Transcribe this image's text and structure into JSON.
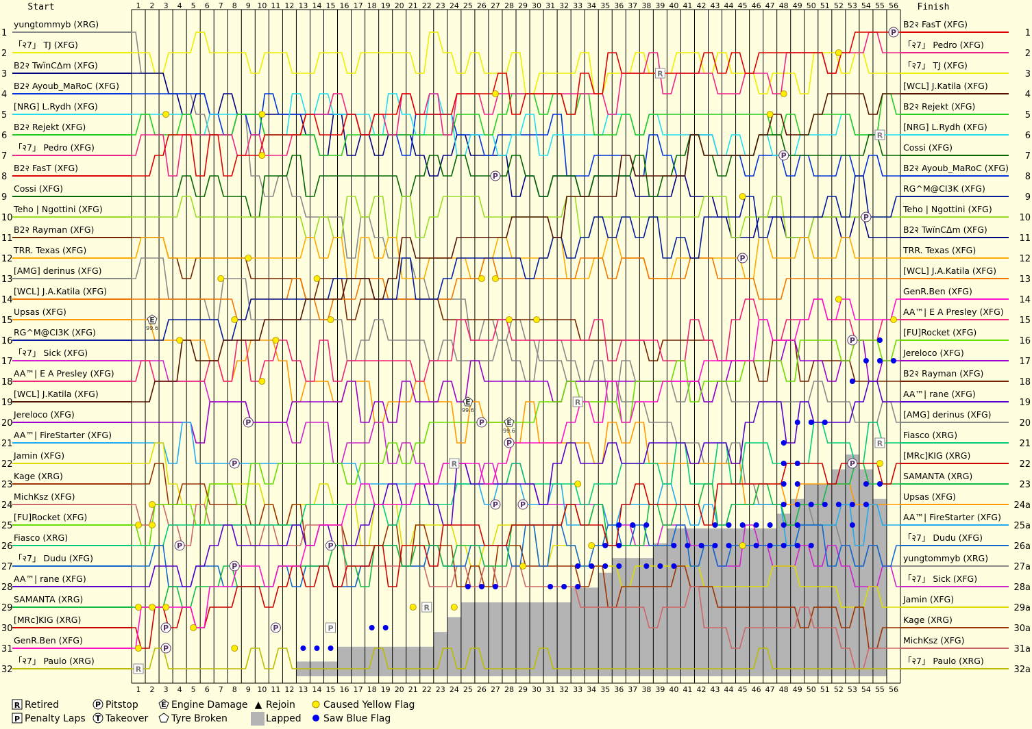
{
  "header": {
    "start_label": "Start",
    "finish_label": "Finish"
  },
  "legend": [
    {
      "symbol": "R",
      "label": "Retired",
      "kind": "box"
    },
    {
      "symbol": "P",
      "label": "Pitstop",
      "kind": "circle"
    },
    {
      "symbol": "E",
      "label": "Engine Damage",
      "kind": "pentagon"
    },
    {
      "symbol": "▲",
      "label": "Rejoin",
      "kind": "glyph"
    },
    {
      "symbol": "",
      "label": "Caused Yellow Flag",
      "kind": "yellowdot"
    },
    {
      "symbol": "P",
      "label": "Penalty Laps",
      "kind": "box"
    },
    {
      "symbol": "T",
      "label": "Takeover",
      "kind": "circle"
    },
    {
      "symbol": "",
      "label": "Tyre Broken",
      "kind": "pentagon"
    },
    {
      "symbol": "",
      "label": "Lapped",
      "kind": "graybox"
    },
    {
      "symbol": "",
      "label": "Saw Blue Flag",
      "kind": "bluedot"
    }
  ],
  "colors": {
    "background": "#ffffe0",
    "grid": "#000000",
    "lapped": "#b4b4b4",
    "yellow_flag": "#ffee00",
    "blue_flag": "#0000ee"
  },
  "chart_data": {
    "type": "line",
    "title": "",
    "xlabel": "",
    "ylabel": "",
    "laps": [
      1,
      2,
      3,
      4,
      5,
      6,
      7,
      8,
      9,
      10,
      11,
      12,
      13,
      14,
      15,
      16,
      17,
      18,
      19,
      20,
      21,
      22,
      23,
      24,
      25,
      26,
      27,
      28,
      29,
      30,
      31,
      32,
      33,
      34,
      35,
      36,
      37,
      38,
      39,
      40,
      41,
      42,
      43,
      44,
      45,
      46,
      47,
      48,
      49,
      50,
      51,
      52,
      53,
      54,
      55,
      56
    ],
    "positions": [
      1,
      2,
      3,
      4,
      5,
      6,
      7,
      8,
      9,
      10,
      11,
      12,
      13,
      14,
      15,
      16,
      17,
      18,
      19,
      20,
      21,
      22,
      23,
      24,
      25,
      26,
      27,
      28,
      29,
      30,
      31,
      32
    ],
    "start_grid": [
      {
        "pos": 1,
        "name": "yungtommyb (XRG)",
        "color": "#888888"
      },
      {
        "pos": 2,
        "name": "「२7」 TJ (XFG)",
        "color": "#eeee00"
      },
      {
        "pos": 3,
        "name": "B2२ TwïnCΔm (XFG)",
        "color": "#000080"
      },
      {
        "pos": 4,
        "name": "B2२ Ayoub_MaRoC (XFG)",
        "color": "#0033dd"
      },
      {
        "pos": 5,
        "name": "[NRG] L.Rydh (XFG)",
        "color": "#22ddee"
      },
      {
        "pos": 6,
        "name": "B2२ Rejekt (XFG)",
        "color": "#22cc22"
      },
      {
        "pos": 7,
        "name": "「२7」 Pedro (XFG)",
        "color": "#ee2288"
      },
      {
        "pos": 8,
        "name": "B2२ FasT (XFG)",
        "color": "#dd0000"
      },
      {
        "pos": 9,
        "name": "Cossi (XFG)",
        "color": "#006600"
      },
      {
        "pos": 10,
        "name": "Teho | Ngottini (XFG)",
        "color": "#99dd22"
      },
      {
        "pos": 11,
        "name": "B2२ Rayman (XFG)",
        "color": "#772200"
      },
      {
        "pos": 12,
        "name": "TRR. Texas (XFG)",
        "color": "#ffaa00"
      },
      {
        "pos": 13,
        "name": "[AMG] derinus (XFG)",
        "color": "#888888"
      },
      {
        "pos": 14,
        "name": "[WCL] J.A.Katila (XFG)",
        "color": "#ee7700"
      },
      {
        "pos": 15,
        "name": "Upsas (XFG)",
        "color": "#ff9900"
      },
      {
        "pos": 16,
        "name": "RG^M@CI3K (XFG)",
        "color": "#001a99"
      },
      {
        "pos": 17,
        "name": "「२7」 Sick (XFG)",
        "color": "#cc22cc"
      },
      {
        "pos": 18,
        "name": "AA™| E A Presley (XFG)",
        "color": "#ee2277"
      },
      {
        "pos": 19,
        "name": "[WCL] J.Katila (XFG)",
        "color": "#551100"
      },
      {
        "pos": 20,
        "name": "Jereloco (XFG)",
        "color": "#9900cc"
      },
      {
        "pos": 21,
        "name": "AA™| FireStarter (XFG)",
        "color": "#22aaee"
      },
      {
        "pos": 22,
        "name": "Jamin (XFG)",
        "color": "#dddd00"
      },
      {
        "pos": 23,
        "name": "Kage (XRG)",
        "color": "#993300"
      },
      {
        "pos": 24,
        "name": "MichKsz (XFG)",
        "color": "#cc6666"
      },
      {
        "pos": 25,
        "name": "[FU]Rocket (XFG)",
        "color": "#66dd00"
      },
      {
        "pos": 26,
        "name": "Fiasco (XRG)",
        "color": "#00cc77"
      },
      {
        "pos": 27,
        "name": "「२7」 Dudu (XFG)",
        "color": "#1166cc"
      },
      {
        "pos": 28,
        "name": "AA™| rane (XFG)",
        "color": "#5500cc"
      },
      {
        "pos": 29,
        "name": "SAMANTA (XRG)",
        "color": "#11bb44"
      },
      {
        "pos": 30,
        "name": "[MRc]KIG (XRG)",
        "color": "#cc0000"
      },
      {
        "pos": 31,
        "name": "GenR.Ben (XFG)",
        "color": "#ff11cc"
      },
      {
        "pos": 32,
        "name": "「२7」 Paulo (XRG)",
        "color": "#bbbb00"
      }
    ],
    "finish_order": [
      {
        "pos": "1",
        "name": "B2२ FasT (XFG)"
      },
      {
        "pos": "2",
        "name": "「२7」 Pedro (XFG)"
      },
      {
        "pos": "3",
        "name": "「२7」 TJ (XFG)"
      },
      {
        "pos": "4",
        "name": "[WCL] J.Katila (XFG)"
      },
      {
        "pos": "5",
        "name": "B2२ Rejekt (XFG)"
      },
      {
        "pos": "6",
        "name": "[NRG] L.Rydh (XFG)"
      },
      {
        "pos": "7",
        "name": "Cossi (XFG)"
      },
      {
        "pos": "8",
        "name": "B2२ Ayoub_MaRoC (XFG)"
      },
      {
        "pos": "9",
        "name": "RG^M@CI3K (XFG)"
      },
      {
        "pos": "10",
        "name": "Teho | Ngottini (XFG)"
      },
      {
        "pos": "11",
        "name": "B2२ TwïnCΔm (XFG)"
      },
      {
        "pos": "12",
        "name": "TRR. Texas (XFG)"
      },
      {
        "pos": "13",
        "name": "[WCL] J.A.Katila (XFG)"
      },
      {
        "pos": "14",
        "name": "GenR.Ben (XFG)"
      },
      {
        "pos": "15",
        "name": "AA™| E A Presley (XFG)"
      },
      {
        "pos": "16",
        "name": "[FU]Rocket (XFG)"
      },
      {
        "pos": "17",
        "name": "Jereloco (XFG)"
      },
      {
        "pos": "18",
        "name": "B2२ Rayman (XFG)"
      },
      {
        "pos": "19",
        "name": "AA™| rane (XFG)"
      },
      {
        "pos": "20",
        "name": "[AMG] derinus (XFG)"
      },
      {
        "pos": "21",
        "name": "Fiasco (XRG)"
      },
      {
        "pos": "22",
        "name": "[MRc]KIG (XRG)"
      },
      {
        "pos": "23",
        "name": "SAMANTA (XRG)"
      },
      {
        "pos": "24a",
        "name": "Upsas (XFG)"
      },
      {
        "pos": "25a",
        "name": "AA™| FireStarter (XFG)"
      },
      {
        "pos": "26a",
        "name": "「२7」 Dudu (XFG)"
      },
      {
        "pos": "27a",
        "name": "yungtommyb (XRG)"
      },
      {
        "pos": "28a",
        "name": "「२7」 Sick (XFG)"
      },
      {
        "pos": "29a",
        "name": "Jamin (XFG)"
      },
      {
        "pos": "30a",
        "name": "Kage (XRG)"
      },
      {
        "pos": "31a",
        "name": "MichKsz (XFG)"
      },
      {
        "pos": "32a",
        "name": "「२7」 Paulo (XRG)"
      }
    ],
    "finish_positions": {
      "B2२ FasT (XFG)": 1,
      "「२7」 Pedro (XFG)": 2,
      "「२7」 TJ (XFG)": 3,
      "[WCL] J.Katila (XFG)": 4,
      "B2२ Rejekt (XFG)": 5,
      "[NRG] L.Rydh (XFG)": 6,
      "Cossi (XFG)": 7,
      "B2२ Ayoub_MaRoC (XFG)": 8,
      "RG^M@CI3K (XFG)": 9,
      "Teho | Ngottini (XFG)": 10,
      "B2२ TwïnCΔm (XFG)": 11,
      "TRR. Texas (XFG)": 12,
      "[WCL] J.A.Katila (XFG)": 13,
      "GenR.Ben (XFG)": 14,
      "AA™| E A Presley (XFG)": 15,
      "[FU]Rocket (XFG)": 16,
      "Jereloco (XFG)": 17,
      "B2२ Rayman (XFG)": 18,
      "AA™| rane (XFG)": 19,
      "[AMG] derinus (XFG)": 20,
      "Fiasco (XRG)": 21,
      "[MRc]KIG (XRG)": 22,
      "SAMANTA (XRG)": 23,
      "Upsas (XFG)": 24,
      "AA™| FireStarter (XFG)": 25,
      "「२7」 Dudu (XFG)": 26,
      "yungtommyb (XRG)": 27,
      "「२7」 Sick (XFG)": 28,
      "Jamin (XFG)": 29,
      "Kage (XRG)": 30,
      "MichKsz (XFG)": 31,
      "「२7」 Paulo (XRG)": 32
    },
    "lapped_count_by_lap": [
      0,
      0,
      0,
      0,
      0,
      0,
      0,
      0,
      0,
      0,
      0,
      0,
      1,
      1,
      1,
      2,
      2,
      2,
      2,
      2,
      2,
      2,
      3,
      4,
      5,
      5,
      5,
      5,
      5,
      5,
      5,
      5,
      6,
      6,
      7,
      8,
      8,
      8,
      9,
      10,
      10,
      10,
      10,
      10,
      10,
      10,
      10,
      11,
      12,
      13,
      13,
      14,
      15,
      14,
      12,
      0
    ],
    "markers": [
      {
        "lap": 1,
        "pos": 32,
        "type": "R"
      },
      {
        "lap": 22,
        "pos": 29,
        "type": "R"
      },
      {
        "lap": 24,
        "pos": 22,
        "type": "R"
      },
      {
        "lap": 33,
        "pos": 19,
        "type": "R"
      },
      {
        "lap": 39,
        "pos": 3,
        "type": "R"
      },
      {
        "lap": 55,
        "pos": 6,
        "type": "R"
      },
      {
        "lap": 55,
        "pos": 21,
        "type": "R"
      },
      {
        "lap": 15,
        "pos": 30,
        "type": "PEN"
      },
      {
        "lap": 3,
        "pos": 30,
        "type": "P"
      },
      {
        "lap": 3,
        "pos": 31,
        "type": "P"
      },
      {
        "lap": 4,
        "pos": 26,
        "type": "P"
      },
      {
        "lap": 8,
        "pos": 27,
        "type": "P"
      },
      {
        "lap": 9,
        "pos": 20,
        "type": "P"
      },
      {
        "lap": 8,
        "pos": 22,
        "type": "P"
      },
      {
        "lap": 11,
        "pos": 30,
        "type": "P"
      },
      {
        "lap": 15,
        "pos": 26,
        "type": "P"
      },
      {
        "lap": 26,
        "pos": 20,
        "type": "P"
      },
      {
        "lap": 28,
        "pos": 21,
        "type": "P"
      },
      {
        "lap": 27,
        "pos": 24,
        "type": "P"
      },
      {
        "lap": 29,
        "pos": 24,
        "type": "P"
      },
      {
        "lap": 27,
        "pos": 8,
        "type": "P"
      },
      {
        "lap": 48,
        "pos": 7,
        "type": "P"
      },
      {
        "lap": 53,
        "pos": 16,
        "type": "P"
      },
      {
        "lap": 53,
        "pos": 22,
        "type": "P"
      },
      {
        "lap": 54,
        "pos": 10,
        "type": "P"
      },
      {
        "lap": 56,
        "pos": 1,
        "type": "P"
      },
      {
        "lap": 45,
        "pos": 12,
        "type": "P"
      },
      {
        "lap": 2,
        "pos": 15,
        "type": "E",
        "note": "99.6"
      },
      {
        "lap": 25,
        "pos": 19,
        "type": "E",
        "note": "99.6"
      },
      {
        "lap": 28,
        "pos": 20,
        "type": "E",
        "note": "99.6"
      }
    ],
    "yellow_flags": [
      {
        "lap": 3,
        "pos": 5
      },
      {
        "lap": 10,
        "pos": 5
      },
      {
        "lap": 10,
        "pos": 7
      },
      {
        "lap": 9,
        "pos": 12
      },
      {
        "lap": 7,
        "pos": 13
      },
      {
        "lap": 14,
        "pos": 13
      },
      {
        "lap": 26,
        "pos": 13
      },
      {
        "lap": 27,
        "pos": 13
      },
      {
        "lap": 15,
        "pos": 15
      },
      {
        "lap": 8,
        "pos": 15
      },
      {
        "lap": 28,
        "pos": 15
      },
      {
        "lap": 30,
        "pos": 15
      },
      {
        "lap": 4,
        "pos": 16
      },
      {
        "lap": 11,
        "pos": 16
      },
      {
        "lap": 10,
        "pos": 18
      },
      {
        "lap": 27,
        "pos": 4
      },
      {
        "lap": 48,
        "pos": 4
      },
      {
        "lap": 47,
        "pos": 5
      },
      {
        "lap": 45,
        "pos": 9
      },
      {
        "lap": 52,
        "pos": 14
      },
      {
        "lap": 52,
        "pos": 2
      },
      {
        "lap": 56,
        "pos": 1
      },
      {
        "lap": 56,
        "pos": 15
      },
      {
        "lap": 55,
        "pos": 22
      },
      {
        "lap": 33,
        "pos": 23
      },
      {
        "lap": 29,
        "pos": 27
      },
      {
        "lap": 34,
        "pos": 26
      },
      {
        "lap": 45,
        "pos": 26
      },
      {
        "lap": 21,
        "pos": 29
      },
      {
        "lap": 24,
        "pos": 29
      },
      {
        "lap": 5,
        "pos": 30
      },
      {
        "lap": 8,
        "pos": 31
      },
      {
        "lap": 1,
        "pos": 31
      },
      {
        "lap": 1,
        "pos": 25
      },
      {
        "lap": 2,
        "pos": 25
      },
      {
        "lap": 2,
        "pos": 24
      },
      {
        "lap": 1,
        "pos": 29
      },
      {
        "lap": 2,
        "pos": 29
      },
      {
        "lap": 3,
        "pos": 29
      }
    ],
    "blue_flags": [
      {
        "lap": 13,
        "pos": 31
      },
      {
        "lap": 14,
        "pos": 31
      },
      {
        "lap": 15,
        "pos": 31
      },
      {
        "lap": 18,
        "pos": 30
      },
      {
        "lap": 19,
        "pos": 30
      },
      {
        "lap": 25,
        "pos": 28
      },
      {
        "lap": 26,
        "pos": 28
      },
      {
        "lap": 27,
        "pos": 28
      },
      {
        "lap": 31,
        "pos": 28
      },
      {
        "lap": 32,
        "pos": 28
      },
      {
        "lap": 33,
        "pos": 28
      },
      {
        "lap": 33,
        "pos": 27
      },
      {
        "lap": 34,
        "pos": 27
      },
      {
        "lap": 35,
        "pos": 27
      },
      {
        "lap": 36,
        "pos": 27
      },
      {
        "lap": 38,
        "pos": 27
      },
      {
        "lap": 39,
        "pos": 27
      },
      {
        "lap": 40,
        "pos": 27
      },
      {
        "lap": 35,
        "pos": 26
      },
      {
        "lap": 36,
        "pos": 26
      },
      {
        "lap": 36,
        "pos": 25
      },
      {
        "lap": 37,
        "pos": 25
      },
      {
        "lap": 38,
        "pos": 25
      },
      {
        "lap": 40,
        "pos": 26
      },
      {
        "lap": 41,
        "pos": 26
      },
      {
        "lap": 42,
        "pos": 26
      },
      {
        "lap": 43,
        "pos": 26
      },
      {
        "lap": 44,
        "pos": 26
      },
      {
        "lap": 46,
        "pos": 26
      },
      {
        "lap": 47,
        "pos": 26
      },
      {
        "lap": 48,
        "pos": 26
      },
      {
        "lap": 49,
        "pos": 26
      },
      {
        "lap": 50,
        "pos": 26
      },
      {
        "lap": 43,
        "pos": 25
      },
      {
        "lap": 44,
        "pos": 25
      },
      {
        "lap": 45,
        "pos": 25
      },
      {
        "lap": 46,
        "pos": 25
      },
      {
        "lap": 47,
        "pos": 25
      },
      {
        "lap": 48,
        "pos": 25
      },
      {
        "lap": 49,
        "pos": 25
      },
      {
        "lap": 48,
        "pos": 24
      },
      {
        "lap": 49,
        "pos": 24
      },
      {
        "lap": 50,
        "pos": 24
      },
      {
        "lap": 51,
        "pos": 24
      },
      {
        "lap": 52,
        "pos": 24
      },
      {
        "lap": 53,
        "pos": 24
      },
      {
        "lap": 54,
        "pos": 24
      },
      {
        "lap": 48,
        "pos": 23
      },
      {
        "lap": 49,
        "pos": 23
      },
      {
        "lap": 49,
        "pos": 22
      },
      {
        "lap": 48,
        "pos": 22
      },
      {
        "lap": 49,
        "pos": 20
      },
      {
        "lap": 50,
        "pos": 20
      },
      {
        "lap": 51,
        "pos": 20
      },
      {
        "lap": 48,
        "pos": 21
      },
      {
        "lap": 53,
        "pos": 22
      },
      {
        "lap": 54,
        "pos": 23
      },
      {
        "lap": 55,
        "pos": 23
      },
      {
        "lap": 54,
        "pos": 17
      },
      {
        "lap": 55,
        "pos": 17
      },
      {
        "lap": 56,
        "pos": 17
      },
      {
        "lap": 55,
        "pos": 16
      },
      {
        "lap": 53,
        "pos": 18
      },
      {
        "lap": 53,
        "pos": 25
      }
    ],
    "legend_position": "bottom-left",
    "grid": true
  }
}
